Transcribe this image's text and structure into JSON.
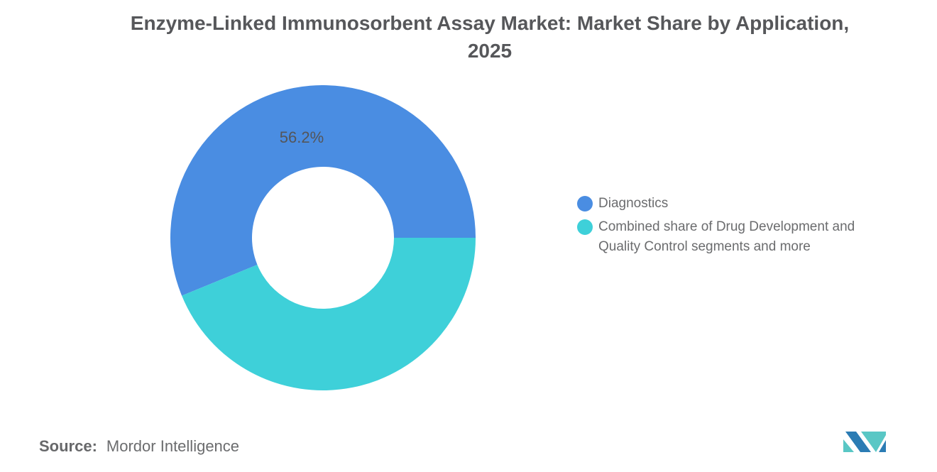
{
  "title": {
    "line1": "Enzyme-Linked Immunosorbent Assay Market: Market Share by Application,",
    "line2": "2025"
  },
  "chart_data": {
    "type": "pie",
    "donut": true,
    "title": "Enzyme-Linked Immunosorbent Assay Market: Market Share by Application, 2025",
    "slices": [
      {
        "label": "Diagnostics",
        "value": 56.2,
        "data_label": "56.2%",
        "color": "#4a8de2"
      },
      {
        "label": "Combined share of Drug Development and Quality Control segments and more",
        "value": 43.8,
        "data_label": "",
        "color": "#3ed0d9"
      }
    ],
    "start_angle_deg": 0,
    "sweep_direction": "counterclockwise",
    "inner_radius_ratio": 0.465,
    "legend_position": "right",
    "background": "#ffffff"
  },
  "source": {
    "prefix": "Source:",
    "text": "Mordor Intelligence"
  },
  "logo": {
    "alt": "Mordor Intelligence logo",
    "blue": "#2b7cb4",
    "teal": "#59c7c5"
  }
}
